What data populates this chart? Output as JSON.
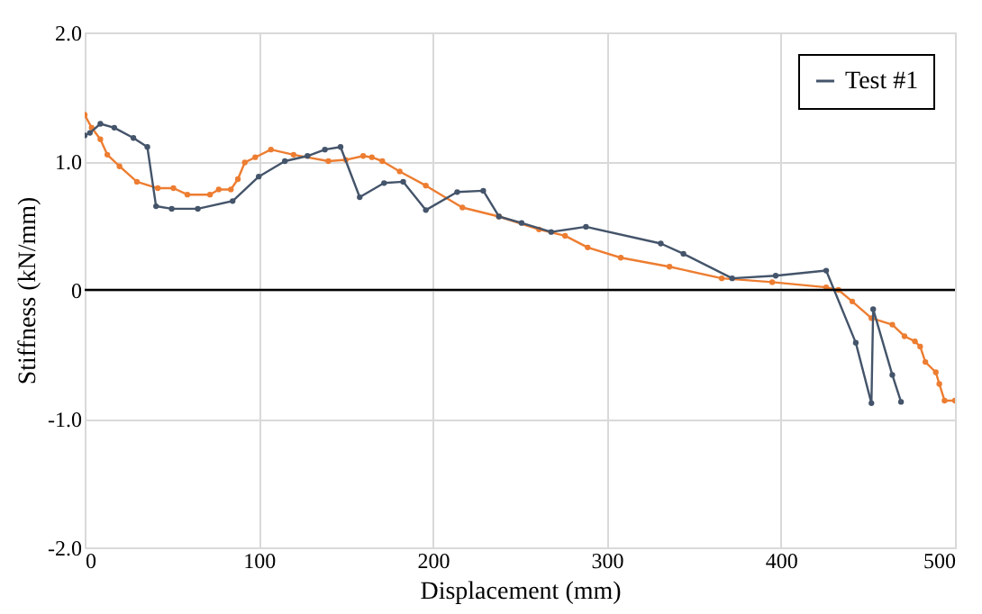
{
  "chart_data": {
    "type": "line",
    "xlabel": "Displacement (mm)",
    "ylabel": "Stiffness (kN/mm)",
    "xlim": [
      0,
      500
    ],
    "xticks": [
      0,
      100,
      200,
      300,
      400,
      500
    ],
    "ylim": [
      -2,
      2
    ],
    "yticks": [
      {
        "value": -2,
        "label": "-2.0"
      },
      {
        "value": -1,
        "label": "-1.0"
      },
      0,
      {
        "value": 1,
        "label": "1.0"
      },
      {
        "value": 2,
        "label": "2.0"
      }
    ],
    "grid": true,
    "legend": "top right",
    "marker": "circle",
    "line_style": "solid",
    "ref_lines": [
      {
        "axis": "y",
        "value": 0,
        "color": "#000000"
      }
    ],
    "series": [
      {
        "color": "#ed7d31",
        "x": [
          0,
          4,
          9,
          13,
          20,
          30,
          42,
          51,
          59,
          72,
          77,
          84,
          88,
          92,
          98,
          107,
          120,
          140,
          150,
          160,
          165,
          171,
          181,
          196,
          217,
          238,
          261,
          276,
          289,
          308,
          336,
          366,
          395,
          426,
          433,
          441,
          452,
          464,
          471,
          477,
          480,
          483,
          489,
          491,
          494,
          500
        ],
        "values": [
          1.36,
          1.26,
          1.17,
          1.05,
          0.96,
          0.84,
          0.79,
          0.79,
          0.74,
          0.74,
          0.78,
          0.78,
          0.86,
          0.99,
          1.03,
          1.09,
          1.05,
          1.0,
          1.01,
          1.04,
          1.03,
          1.0,
          0.92,
          0.81,
          0.64,
          0.57,
          0.47,
          0.42,
          0.33,
          0.25,
          0.18,
          0.09,
          0.06,
          0.02,
          0.0,
          -0.09,
          -0.22,
          -0.27,
          -0.36,
          -0.4,
          -0.44,
          -0.56,
          -0.64,
          -0.73,
          -0.86,
          -0.86
        ]
      },
      {
        "name": "Test #1",
        "color": "#44546a",
        "x": [
          0,
          3,
          9,
          17,
          28,
          36,
          41,
          50,
          65,
          85,
          100,
          115,
          128,
          138,
          147,
          158,
          172,
          183,
          196,
          214,
          229,
          238,
          251,
          268,
          288,
          331,
          344,
          372,
          397,
          426,
          443,
          452,
          453,
          464,
          469
        ],
        "values": [
          1.2,
          1.22,
          1.29,
          1.26,
          1.18,
          1.11,
          0.65,
          0.63,
          0.63,
          0.69,
          0.88,
          1.0,
          1.04,
          1.09,
          1.11,
          0.72,
          0.83,
          0.84,
          0.62,
          0.76,
          0.77,
          0.57,
          0.52,
          0.45,
          0.49,
          0.36,
          0.28,
          0.09,
          0.11,
          0.15,
          -0.41,
          -0.88,
          -0.15,
          -0.66,
          -0.87
        ]
      }
    ]
  }
}
